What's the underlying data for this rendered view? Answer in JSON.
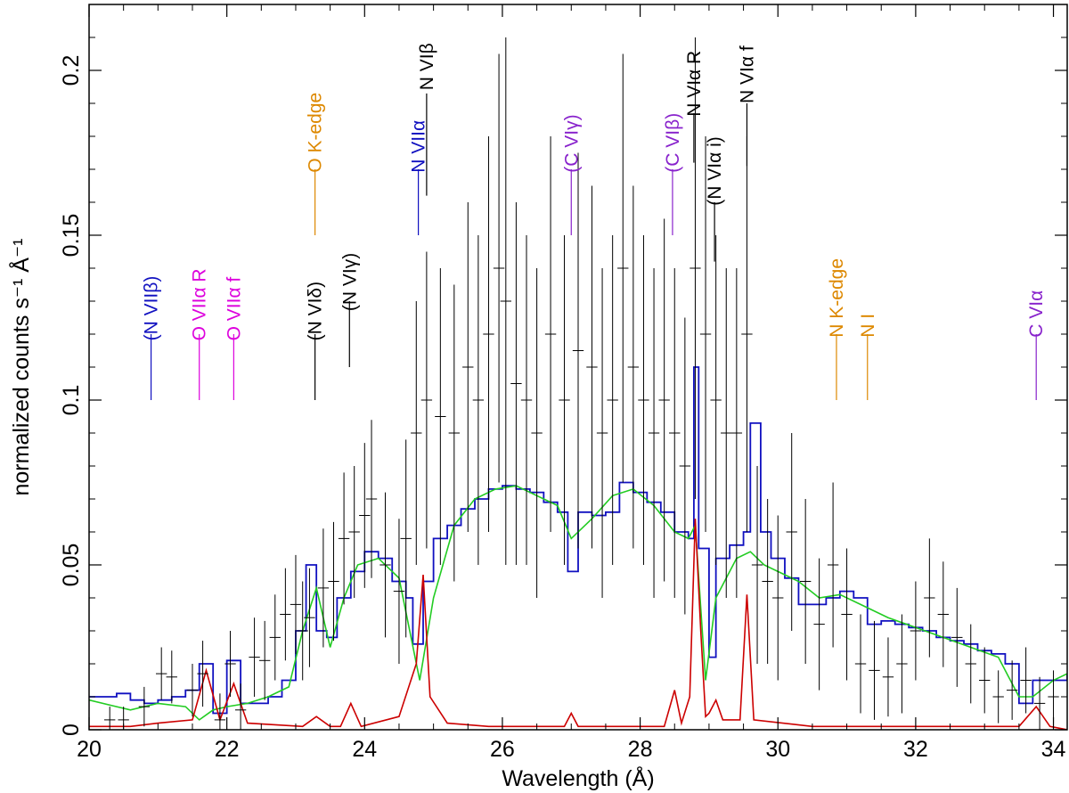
{
  "chart_data": {
    "type": "line",
    "xlabel": "Wavelength (Å)",
    "ylabel": "normalized counts s⁻¹ Å⁻¹",
    "xlim": [
      20,
      34.2
    ],
    "ylim": [
      0,
      0.22
    ],
    "x_ticks": [
      20,
      22,
      24,
      26,
      28,
      30,
      32,
      34
    ],
    "y_ticks": [
      0,
      0.05,
      0.1,
      0.15,
      0.2
    ],
    "y_tick_labels": [
      "0",
      "0.05",
      "0.1",
      "0.15",
      "0.2"
    ],
    "grid": false,
    "series": [
      {
        "role": "model-step",
        "color": "#1010c0",
        "x": [
          20,
          20.4,
          20.6,
          20.8,
          21.0,
          21.2,
          21.4,
          21.6,
          21.8,
          22.0,
          22.2,
          22.4,
          22.6,
          22.8,
          23.0,
          23.15,
          23.3,
          23.45,
          23.6,
          23.8,
          24.0,
          24.2,
          24.4,
          24.6,
          24.7,
          24.85,
          25.0,
          25.2,
          25.4,
          25.6,
          25.8,
          26.0,
          26.2,
          26.4,
          26.6,
          26.8,
          26.95,
          27.1,
          27.3,
          27.5,
          27.7,
          27.9,
          28.1,
          28.3,
          28.5,
          28.7,
          28.78,
          28.85,
          29.0,
          29.1,
          29.3,
          29.5,
          29.6,
          29.75,
          29.9,
          30.1,
          30.3,
          30.5,
          30.7,
          30.9,
          31.1,
          31.3,
          31.5,
          31.7,
          31.9,
          32.1,
          32.3,
          32.5,
          32.7,
          32.9,
          33.1,
          33.3,
          33.5,
          33.7,
          33.9,
          34.2
        ],
        "y": [
          0.01,
          0.011,
          0.009,
          0.008,
          0.009,
          0.01,
          0.012,
          0.02,
          0.005,
          0.021,
          0.008,
          0.008,
          0.01,
          0.015,
          0.03,
          0.05,
          0.03,
          0.028,
          0.04,
          0.048,
          0.054,
          0.052,
          0.045,
          0.04,
          0.026,
          0.045,
          0.058,
          0.062,
          0.067,
          0.07,
          0.073,
          0.074,
          0.073,
          0.072,
          0.069,
          0.066,
          0.048,
          0.066,
          0.065,
          0.066,
          0.075,
          0.072,
          0.069,
          0.066,
          0.06,
          0.058,
          0.11,
          0.055,
          0.022,
          0.052,
          0.056,
          0.06,
          0.093,
          0.06,
          0.052,
          0.046,
          0.038,
          0.038,
          0.04,
          0.042,
          0.04,
          0.032,
          0.033,
          0.032,
          0.031,
          0.03,
          0.028,
          0.027,
          0.026,
          0.024,
          0.023,
          0.02,
          0.008,
          0.015,
          0.015,
          0.017
        ]
      },
      {
        "role": "model-smooth",
        "color": "#22cc22",
        "x": [
          20,
          20.6,
          21.0,
          21.4,
          21.6,
          21.8,
          22.0,
          22.3,
          22.6,
          22.9,
          23.1,
          23.3,
          23.5,
          23.7,
          23.9,
          24.2,
          24.5,
          24.8,
          25.0,
          25.3,
          25.6,
          25.9,
          26.2,
          26.5,
          26.8,
          27.0,
          27.3,
          27.6,
          27.9,
          28.2,
          28.5,
          28.7,
          28.8,
          28.95,
          29.1,
          29.4,
          29.6,
          29.8,
          30.0,
          30.3,
          30.6,
          30.9,
          31.2,
          31.6,
          32.0,
          32.4,
          32.8,
          33.2,
          33.5,
          33.7,
          34.0,
          34.2
        ],
        "y": [
          0.009,
          0.006,
          0.008,
          0.007,
          0.003,
          0.006,
          0.007,
          0.008,
          0.01,
          0.013,
          0.03,
          0.043,
          0.025,
          0.04,
          0.05,
          0.052,
          0.046,
          0.015,
          0.04,
          0.062,
          0.07,
          0.073,
          0.074,
          0.071,
          0.068,
          0.058,
          0.064,
          0.071,
          0.073,
          0.068,
          0.06,
          0.058,
          0.062,
          0.015,
          0.04,
          0.052,
          0.054,
          0.05,
          0.048,
          0.045,
          0.04,
          0.041,
          0.038,
          0.034,
          0.031,
          0.028,
          0.025,
          0.022,
          0.01,
          0.01,
          0.015,
          0.017
        ]
      },
      {
        "role": "emission-lines",
        "color": "#cc0000",
        "x": [
          20,
          20.6,
          21.0,
          21.5,
          21.7,
          21.9,
          22.1,
          22.3,
          23.1,
          23.3,
          23.5,
          23.65,
          23.8,
          23.95,
          24.5,
          24.75,
          24.85,
          24.95,
          25.2,
          25.8,
          26.4,
          26.9,
          27.0,
          27.1,
          28.35,
          28.5,
          28.6,
          28.72,
          28.8,
          28.88,
          28.95,
          29.0,
          29.1,
          29.2,
          29.45,
          29.55,
          29.65,
          30.5,
          33.5,
          33.75,
          33.95,
          34.2
        ],
        "y": [
          0.001,
          0.001,
          0.002,
          0.003,
          0.018,
          0.003,
          0.014,
          0.002,
          0.001,
          0.004,
          0.001,
          0.001,
          0.008,
          0.001,
          0.004,
          0.02,
          0.047,
          0.01,
          0.002,
          0.001,
          0.001,
          0.001,
          0.005,
          0.001,
          0.001,
          0.012,
          0.002,
          0.01,
          0.064,
          0.03,
          0.004,
          0.005,
          0.009,
          0.003,
          0.003,
          0.041,
          0.003,
          0.001,
          0.001,
          0.007,
          0.001,
          0.0
        ]
      },
      {
        "role": "data-points",
        "color": "#000000",
        "x": [
          20.3,
          20.5,
          20.8,
          21.05,
          21.2,
          21.5,
          21.65,
          21.9,
          22.05,
          22.2,
          22.4,
          22.55,
          22.7,
          22.85,
          23.0,
          23.1,
          23.2,
          23.4,
          23.55,
          23.7,
          23.85,
          24.0,
          24.1,
          24.3,
          24.5,
          24.6,
          24.75,
          24.9,
          25.1,
          25.3,
          25.5,
          25.65,
          25.8,
          25.95,
          26.05,
          26.2,
          26.35,
          26.5,
          26.7,
          26.9,
          27.1,
          27.3,
          27.45,
          27.6,
          27.75,
          27.9,
          28.05,
          28.2,
          28.35,
          28.5,
          28.65,
          28.8,
          28.95,
          29.1,
          29.25,
          29.4,
          29.55,
          29.7,
          29.85,
          30.0,
          30.2,
          30.4,
          30.6,
          30.8,
          31.0,
          31.2,
          31.4,
          31.6,
          31.8,
          32.0,
          32.2,
          32.4,
          32.6,
          32.8,
          33.0,
          33.2,
          33.4,
          33.6,
          33.8,
          34.0
        ],
        "y": [
          0.003,
          0.003,
          0.007,
          0.017,
          0.016,
          0.012,
          0.017,
          0.003,
          0.02,
          0.006,
          0.022,
          0.021,
          0.028,
          0.035,
          0.038,
          0.03,
          0.034,
          0.043,
          0.045,
          0.058,
          0.06,
          0.065,
          0.07,
          0.05,
          0.042,
          0.058,
          0.09,
          0.1,
          0.095,
          0.09,
          0.11,
          0.1,
          0.12,
          0.14,
          0.13,
          0.105,
          0.1,
          0.09,
          0.12,
          0.1,
          0.115,
          0.11,
          0.09,
          0.1,
          0.14,
          0.11,
          0.1,
          0.09,
          0.1,
          0.09,
          0.08,
          0.14,
          0.12,
          0.1,
          0.09,
          0.09,
          0.12,
          0.05,
          0.045,
          0.04,
          0.06,
          0.045,
          0.032,
          0.05,
          0.035,
          0.02,
          0.018,
          0.016,
          0.02,
          0.03,
          0.04,
          0.035,
          0.028,
          0.02,
          0.015,
          0.01,
          0.012,
          0.015,
          0.008,
          0.01
        ],
        "yerr": [
          0.004,
          0.004,
          0.006,
          0.008,
          0.008,
          0.008,
          0.01,
          0.008,
          0.01,
          0.008,
          0.012,
          0.012,
          0.013,
          0.014,
          0.015,
          0.015,
          0.015,
          0.018,
          0.018,
          0.02,
          0.02,
          0.022,
          0.024,
          0.022,
          0.022,
          0.03,
          0.04,
          0.045,
          0.045,
          0.045,
          0.05,
          0.05,
          0.06,
          0.065,
          0.08,
          0.055,
          0.05,
          0.05,
          0.06,
          0.05,
          0.06,
          0.055,
          0.05,
          0.05,
          0.065,
          0.055,
          0.05,
          0.05,
          0.055,
          0.05,
          0.045,
          0.07,
          0.06,
          0.05,
          0.05,
          0.05,
          0.06,
          0.03,
          0.025,
          0.025,
          0.03,
          0.025,
          0.02,
          0.025,
          0.02,
          0.015,
          0.015,
          0.012,
          0.015,
          0.015,
          0.018,
          0.016,
          0.015,
          0.012,
          0.01,
          0.008,
          0.009,
          0.01,
          0.008,
          0.008
        ]
      }
    ],
    "annotations": [
      {
        "text": "(N VIIβ)",
        "x": 20.9,
        "y_text": 0.118,
        "y_line_top": 0.12,
        "y_line_bottom": 0.1,
        "color": "#1010c0"
      },
      {
        "text": "O VIIα R",
        "x": 21.6,
        "y_text": 0.118,
        "y_line_top": 0.12,
        "y_line_bottom": 0.1,
        "color": "#dd00dd"
      },
      {
        "text": "O VIIα f",
        "x": 22.1,
        "y_text": 0.118,
        "y_line_top": 0.12,
        "y_line_bottom": 0.1,
        "color": "#dd00dd"
      },
      {
        "text": "(N VIδ)",
        "x": 23.28,
        "y_text": 0.118,
        "y_line_top": 0.12,
        "y_line_bottom": 0.1,
        "color": "#000000"
      },
      {
        "text": "(N VIγ)",
        "x": 23.78,
        "y_text": 0.127,
        "y_line_top": 0.13,
        "y_line_bottom": 0.11,
        "color": "#000000"
      },
      {
        "text": "O K-edge",
        "x": 23.28,
        "y_text": 0.169,
        "y_line_top": 0.17,
        "y_line_bottom": 0.15,
        "color": "#dd8800"
      },
      {
        "text": "N VIIα",
        "x": 24.78,
        "y_text": 0.169,
        "y_line_top": 0.17,
        "y_line_bottom": 0.15,
        "color": "#1010c0"
      },
      {
        "text": "N VIβ",
        "x": 24.9,
        "y_text": 0.194,
        "y_line_top": 0.193,
        "y_line_bottom": 0.162,
        "color": "#000000"
      },
      {
        "text": "(C VIγ)",
        "x": 27.0,
        "y_text": 0.169,
        "y_line_top": 0.17,
        "y_line_bottom": 0.15,
        "color": "#8822cc"
      },
      {
        "text": "(C VIβ)",
        "x": 28.47,
        "y_text": 0.169,
        "y_line_top": 0.17,
        "y_line_bottom": 0.15,
        "color": "#8822cc"
      },
      {
        "text": "N VIα R",
        "x": 28.78,
        "y_text": 0.186,
        "y_line_top": 0.187,
        "y_line_bottom": 0.172,
        "color": "#000000"
      },
      {
        "text": "(N VIα i)",
        "x": 29.08,
        "y_text": 0.159,
        "y_line_top": 0.16,
        "y_line_bottom": 0.142,
        "color": "#000000"
      },
      {
        "text": "N VIα f",
        "x": 29.55,
        "y_text": 0.19,
        "y_line_top": 0.19,
        "y_line_bottom": 0.171,
        "color": "#000000"
      },
      {
        "text": "N K-edge",
        "x": 30.85,
        "y_text": 0.119,
        "y_line_top": 0.12,
        "y_line_bottom": 0.1,
        "color": "#dd8800"
      },
      {
        "text": "N I",
        "x": 31.3,
        "y_text": 0.119,
        "y_line_top": 0.12,
        "y_line_bottom": 0.1,
        "color": "#dd8800"
      },
      {
        "text": "C VIα",
        "x": 33.75,
        "y_text": 0.119,
        "y_line_top": 0.12,
        "y_line_bottom": 0.1,
        "color": "#8822cc"
      }
    ]
  }
}
